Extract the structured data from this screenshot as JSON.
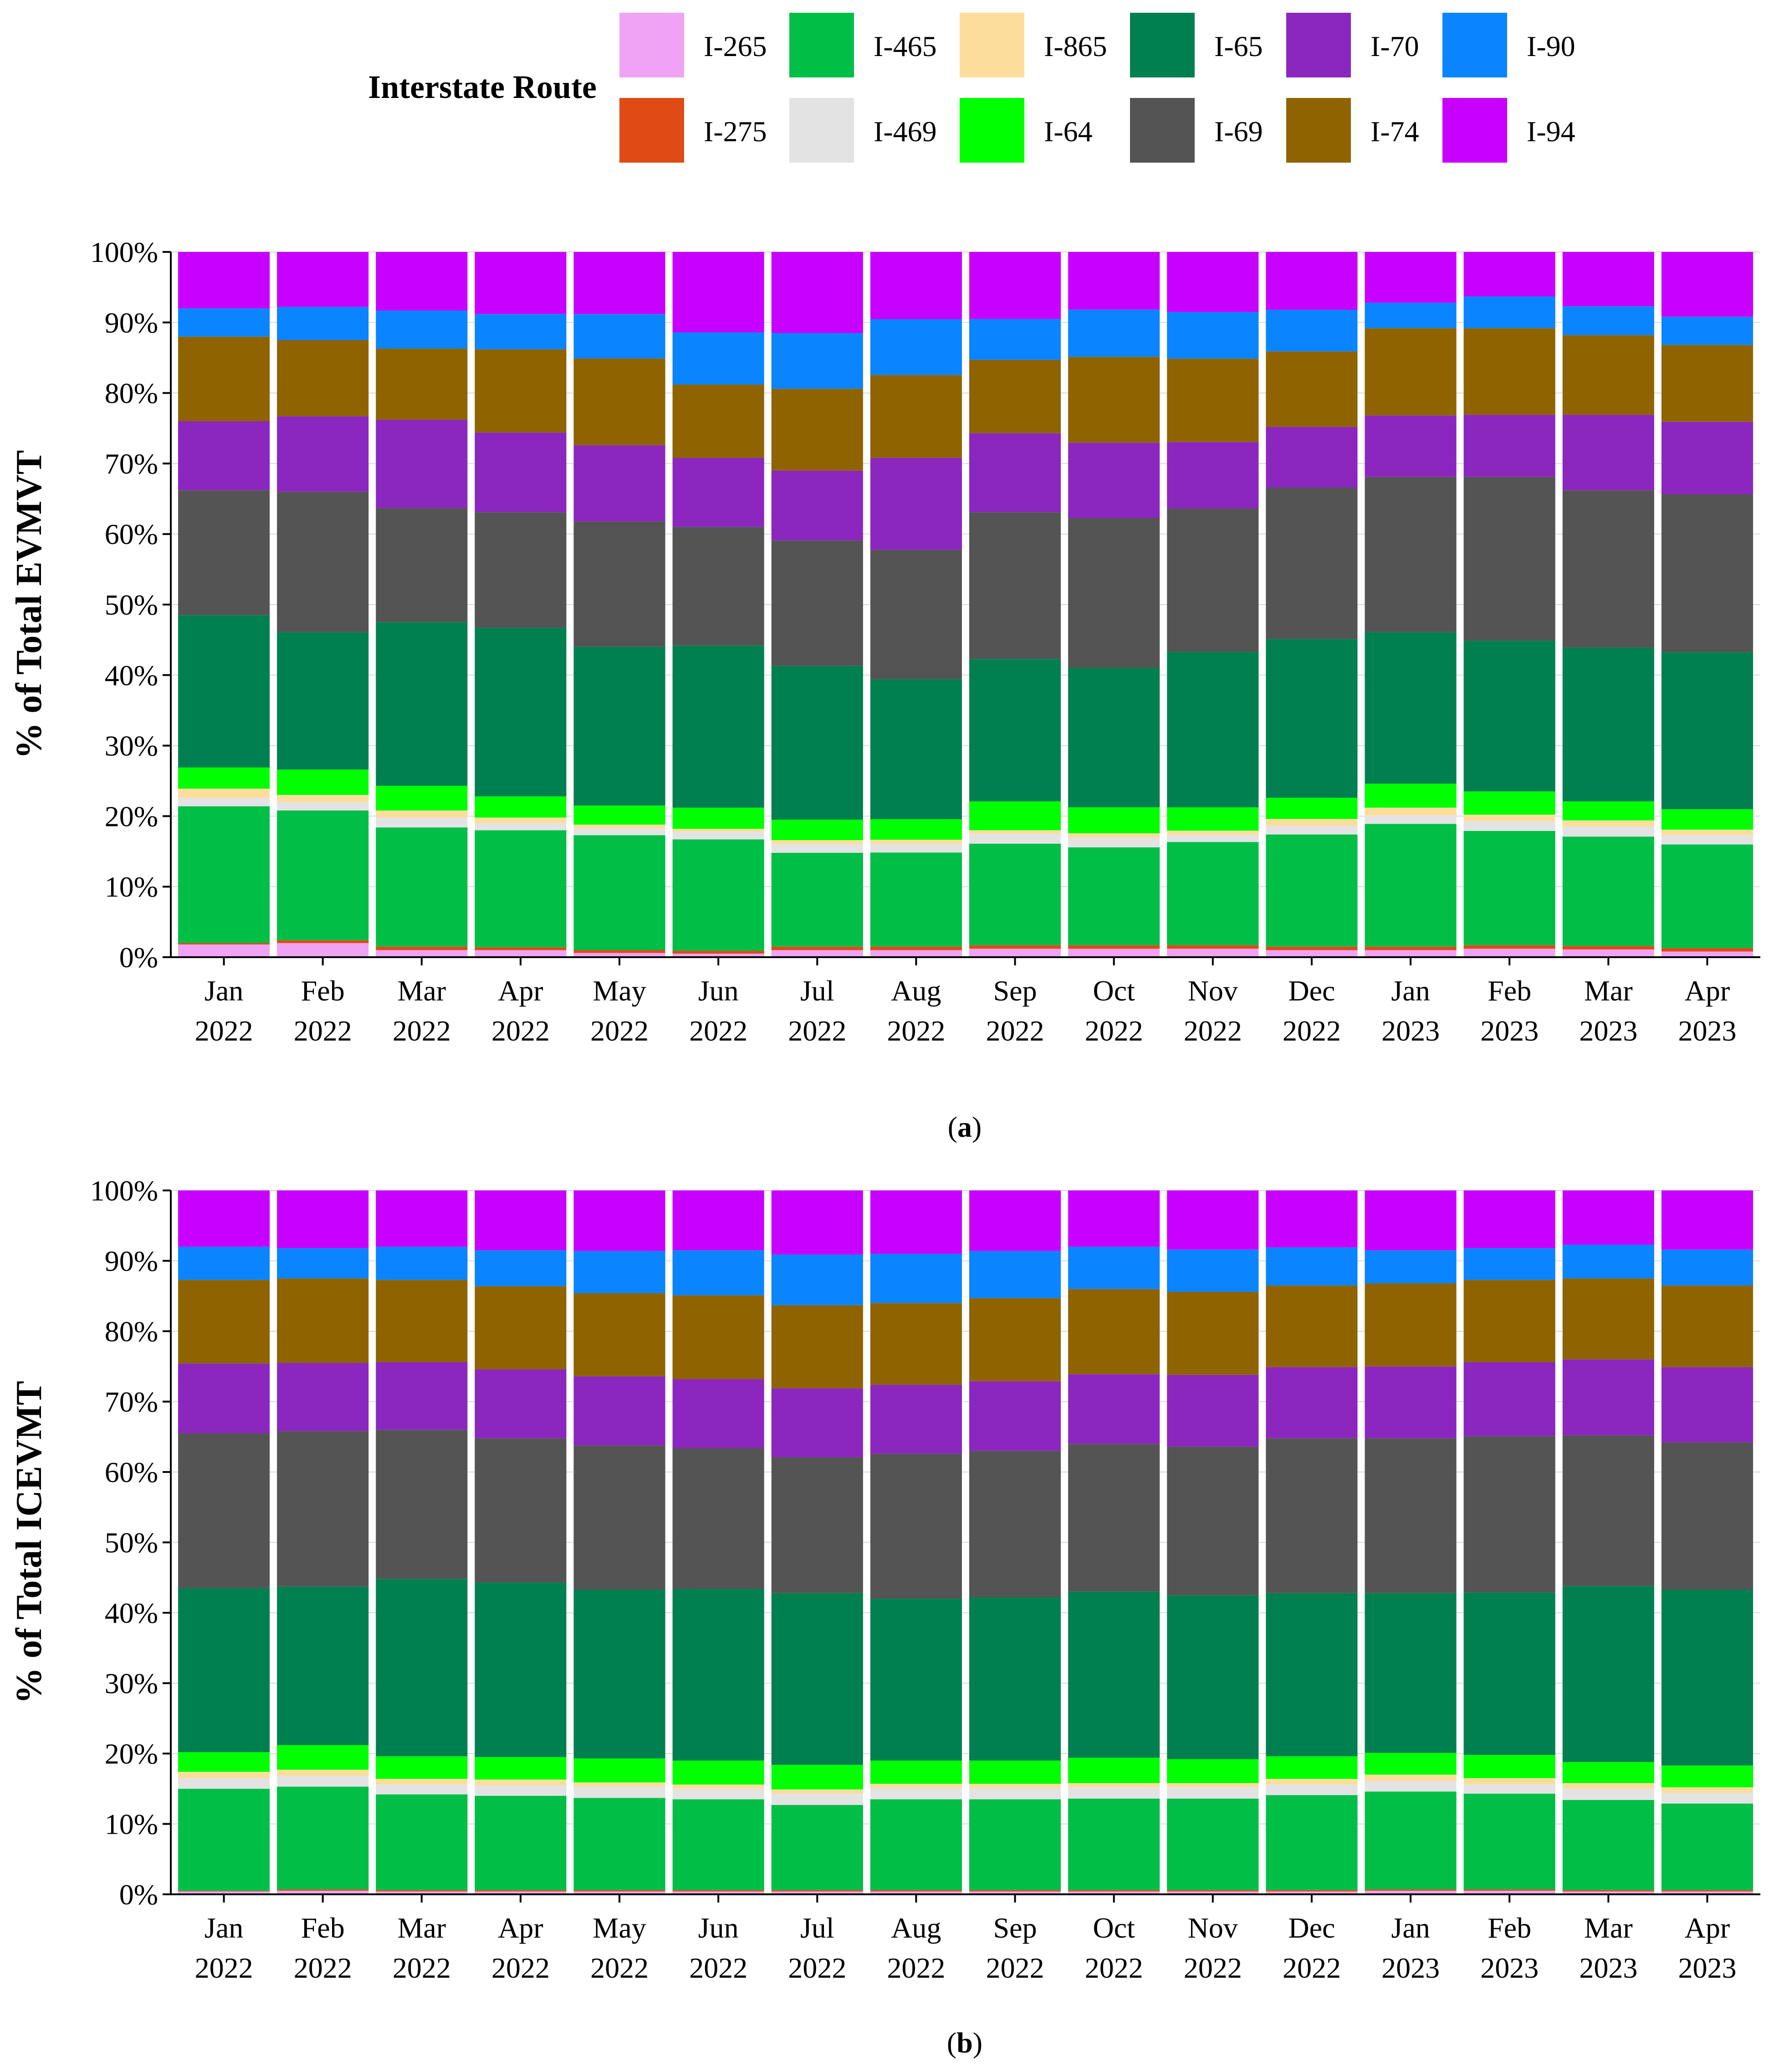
{
  "legend": {
    "title": "Interstate Route",
    "items": [
      {
        "name": "I-265",
        "color": "#F0A3F5"
      },
      {
        "name": "I-465",
        "color": "#00BE46"
      },
      {
        "name": "I-865",
        "color": "#FDDD9C"
      },
      {
        "name": "I-65",
        "color": "#008050"
      },
      {
        "name": "I-70",
        "color": "#8B27BE"
      },
      {
        "name": "I-90",
        "color": "#0A85FF"
      },
      {
        "name": "I-275",
        "color": "#E04A14"
      },
      {
        "name": "I-469",
        "color": "#E3E3E3"
      },
      {
        "name": "I-64",
        "color": "#00FF00"
      },
      {
        "name": "I-69",
        "color": "#545454"
      },
      {
        "name": "I-74",
        "color": "#8F6300"
      },
      {
        "name": "I-94",
        "color": "#C800FF"
      }
    ]
  },
  "panels": [
    {
      "ylabel": "% of Total EVMVT",
      "caption_letter": "a"
    },
    {
      "ylabel": "% of Total ICEVMT",
      "caption_letter": "b"
    }
  ],
  "chart_data": [
    {
      "type": "bar",
      "stacked": true,
      "normalized": true,
      "title": "",
      "xlabel": "",
      "ylabel": "% of Total EVMVT",
      "ylim": [
        0,
        100
      ],
      "yticks": [
        "0%",
        "10%",
        "20%",
        "30%",
        "40%",
        "50%",
        "60%",
        "70%",
        "80%",
        "90%",
        "100%"
      ],
      "categories": [
        [
          "Jan",
          "2022"
        ],
        [
          "Feb",
          "2022"
        ],
        [
          "Mar",
          "2022"
        ],
        [
          "Apr",
          "2022"
        ],
        [
          "May",
          "2022"
        ],
        [
          "Jun",
          "2022"
        ],
        [
          "Jul",
          "2022"
        ],
        [
          "Aug",
          "2022"
        ],
        [
          "Sep",
          "2022"
        ],
        [
          "Oct",
          "2022"
        ],
        [
          "Nov",
          "2022"
        ],
        [
          "Dec",
          "2022"
        ],
        [
          "Jan",
          "2023"
        ],
        [
          "Feb",
          "2023"
        ],
        [
          "Mar",
          "2023"
        ],
        [
          "Apr",
          "2023"
        ]
      ],
      "series": [
        {
          "name": "I-265",
          "values": [
            1.8,
            2.0,
            1.0,
            1.0,
            0.6,
            0.5,
            1.0,
            1.0,
            1.2,
            1.2,
            1.2,
            1.0,
            1.0,
            1.2,
            1.1,
            0.8
          ]
        },
        {
          "name": "I-275",
          "values": [
            0.2,
            0.4,
            0.5,
            0.4,
            0.4,
            0.4,
            0.5,
            0.5,
            0.5,
            0.5,
            0.5,
            0.5,
            0.5,
            0.5,
            0.5,
            0.5
          ]
        },
        {
          "name": "I-465",
          "values": [
            19.4,
            18.4,
            16.9,
            16.6,
            16.3,
            15.8,
            13.3,
            13.3,
            14.4,
            13.9,
            14.6,
            15.9,
            17.4,
            16.2,
            15.5,
            14.7
          ]
        },
        {
          "name": "I-469",
          "values": [
            1.2,
            1.2,
            1.4,
            1.0,
            1.0,
            1.1,
            1.2,
            1.2,
            1.4,
            1.4,
            1.0,
            1.2,
            1.2,
            1.4,
            1.4,
            1.3
          ]
        },
        {
          "name": "I-865",
          "values": [
            1.3,
            1.0,
            1.0,
            0.8,
            0.5,
            0.4,
            0.6,
            0.6,
            0.5,
            0.6,
            0.6,
            1.0,
            1.1,
            0.9,
            0.9,
            0.8
          ]
        },
        {
          "name": "I-64",
          "values": [
            3.0,
            3.6,
            3.5,
            3.0,
            2.7,
            3.0,
            2.9,
            2.9,
            4.1,
            3.7,
            3.3,
            3.0,
            3.4,
            3.3,
            2.7,
            2.9
          ]
        },
        {
          "name": "I-65",
          "values": [
            21.6,
            19.5,
            23.2,
            23.9,
            22.5,
            23.0,
            21.8,
            19.8,
            20.2,
            19.8,
            22.0,
            22.5,
            21.5,
            21.4,
            21.8,
            22.3
          ]
        },
        {
          "name": "I-69",
          "values": [
            17.7,
            19.9,
            16.2,
            16.4,
            17.8,
            16.8,
            17.8,
            18.3,
            20.8,
            21.3,
            20.3,
            21.5,
            22.0,
            23.2,
            22.3,
            22.4
          ]
        },
        {
          "name": "I-70",
          "values": [
            9.8,
            10.7,
            12.5,
            11.3,
            10.8,
            9.8,
            9.9,
            13.0,
            11.2,
            10.7,
            9.4,
            8.6,
            8.7,
            8.8,
            10.7,
            10.3
          ]
        },
        {
          "name": "I-74",
          "values": [
            12.0,
            10.8,
            10.1,
            11.8,
            12.3,
            10.4,
            11.6,
            11.7,
            10.4,
            12.2,
            11.8,
            10.7,
            12.4,
            12.3,
            11.3,
            10.9
          ]
        },
        {
          "name": "I-90",
          "values": [
            4.0,
            4.7,
            5.4,
            5.0,
            6.3,
            7.4,
            7.9,
            7.9,
            5.8,
            6.7,
            6.6,
            5.9,
            3.6,
            4.5,
            4.1,
            4.0
          ]
        },
        {
          "name": "I-94",
          "values": [
            8.0,
            7.8,
            8.3,
            8.8,
            8.8,
            11.4,
            11.5,
            9.5,
            9.5,
            8.2,
            8.5,
            8.2,
            7.2,
            6.3,
            7.7,
            9.2
          ]
        }
      ]
    },
    {
      "type": "bar",
      "stacked": true,
      "normalized": true,
      "title": "",
      "xlabel": "",
      "ylabel": "% of Total ICEVMT",
      "ylim": [
        0,
        100
      ],
      "yticks": [
        "0%",
        "10%",
        "20%",
        "30%",
        "40%",
        "50%",
        "60%",
        "70%",
        "80%",
        "90%",
        "100%"
      ],
      "categories": [
        [
          "Jan",
          "2022"
        ],
        [
          "Feb",
          "2022"
        ],
        [
          "Mar",
          "2022"
        ],
        [
          "Apr",
          "2022"
        ],
        [
          "May",
          "2022"
        ],
        [
          "Jun",
          "2022"
        ],
        [
          "Jul",
          "2022"
        ],
        [
          "Aug",
          "2022"
        ],
        [
          "Sep",
          "2022"
        ],
        [
          "Oct",
          "2022"
        ],
        [
          "Nov",
          "2022"
        ],
        [
          "Dec",
          "2022"
        ],
        [
          "Jan",
          "2023"
        ],
        [
          "Feb",
          "2023"
        ],
        [
          "Mar",
          "2023"
        ],
        [
          "Apr",
          "2023"
        ]
      ],
      "series": [
        {
          "name": "I-265",
          "values": [
            0.4,
            0.5,
            0.4,
            0.4,
            0.4,
            0.4,
            0.4,
            0.4,
            0.4,
            0.4,
            0.4,
            0.4,
            0.5,
            0.5,
            0.4,
            0.4
          ]
        },
        {
          "name": "I-275",
          "values": [
            0.1,
            0.2,
            0.2,
            0.2,
            0.2,
            0.2,
            0.2,
            0.2,
            0.2,
            0.2,
            0.2,
            0.2,
            0.2,
            0.2,
            0.2,
            0.2
          ]
        },
        {
          "name": "I-465",
          "values": [
            14.5,
            14.6,
            13.6,
            13.4,
            13.1,
            12.9,
            12.1,
            12.9,
            12.9,
            13.0,
            13.0,
            13.5,
            13.9,
            13.6,
            12.8,
            12.3
          ]
        },
        {
          "name": "I-469",
          "values": [
            1.5,
            1.5,
            1.4,
            1.5,
            1.6,
            1.5,
            1.6,
            1.6,
            1.6,
            1.6,
            1.6,
            1.5,
            1.5,
            1.3,
            1.6,
            1.5
          ]
        },
        {
          "name": "I-865",
          "values": [
            0.9,
            0.9,
            0.8,
            0.8,
            0.6,
            0.6,
            0.6,
            0.6,
            0.6,
            0.6,
            0.6,
            0.8,
            0.9,
            0.9,
            0.8,
            0.8
          ]
        },
        {
          "name": "I-64",
          "values": [
            2.8,
            3.5,
            3.2,
            3.2,
            3.4,
            3.4,
            3.5,
            3.3,
            3.3,
            3.6,
            3.4,
            3.2,
            3.1,
            3.3,
            3.0,
            3.1
          ]
        },
        {
          "name": "I-65",
          "values": [
            23.3,
            22.5,
            25.2,
            24.8,
            24.0,
            24.4,
            24.4,
            23.0,
            23.2,
            23.6,
            23.3,
            23.2,
            22.7,
            23.1,
            25.0,
            25.0
          ]
        },
        {
          "name": "I-69",
          "values": [
            22.0,
            22.1,
            21.2,
            20.5,
            20.5,
            20.0,
            19.3,
            20.6,
            20.8,
            21.0,
            21.1,
            22.0,
            22.0,
            22.2,
            21.4,
            20.9
          ]
        },
        {
          "name": "I-70",
          "values": [
            9.9,
            9.7,
            9.6,
            9.8,
            9.8,
            9.8,
            9.8,
            9.8,
            9.9,
            9.9,
            10.2,
            10.1,
            10.2,
            10.5,
            10.8,
            10.7
          ]
        },
        {
          "name": "I-74",
          "values": [
            11.9,
            12.0,
            11.7,
            11.8,
            11.8,
            11.9,
            11.8,
            11.6,
            11.8,
            12.1,
            11.8,
            11.6,
            11.8,
            11.7,
            11.5,
            11.6
          ]
        },
        {
          "name": "I-90",
          "values": [
            4.7,
            4.3,
            4.7,
            5.1,
            6.0,
            6.4,
            7.2,
            7.0,
            6.7,
            6.0,
            6.0,
            5.4,
            4.7,
            4.5,
            4.8,
            5.1
          ]
        },
        {
          "name": "I-94",
          "values": [
            8.0,
            8.2,
            8.0,
            8.5,
            8.6,
            8.5,
            9.1,
            9.0,
            8.6,
            8.0,
            8.4,
            8.1,
            8.5,
            8.2,
            7.7,
            8.4
          ]
        }
      ]
    }
  ]
}
